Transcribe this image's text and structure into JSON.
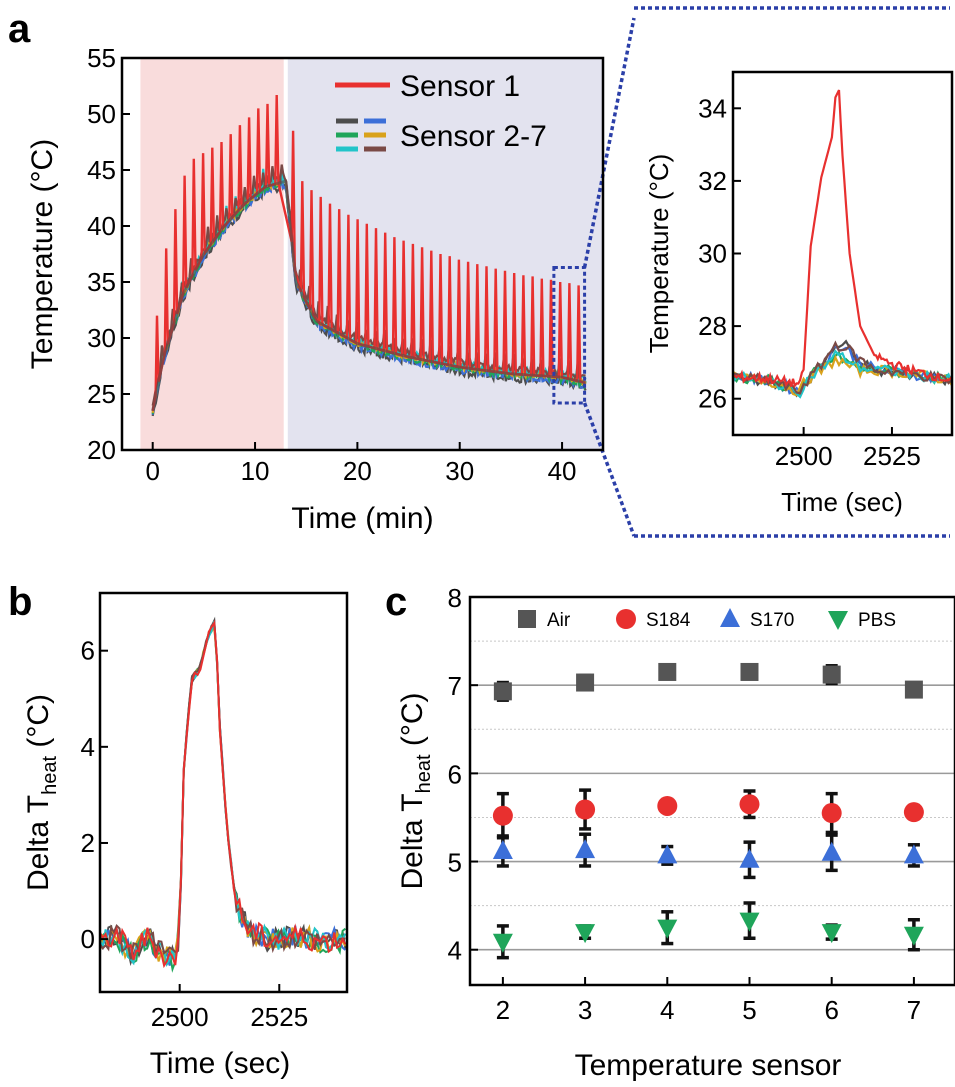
{
  "panels": {
    "a": "a",
    "b": "b",
    "c": "c"
  },
  "chart_data": [
    {
      "panel": "a",
      "type": "line",
      "xlabel": "Time (min)",
      "ylabel": "Temperature (°C)",
      "xlim": [
        -3,
        44
      ],
      "ylim": [
        20,
        55
      ],
      "xticks": [
        "0",
        "10",
        "20",
        "30",
        "40"
      ],
      "yticks": [
        "20",
        "25",
        "30",
        "35",
        "40",
        "45",
        "50",
        "55"
      ],
      "shaded_regions": [
        {
          "x": [
            -1.2,
            12.8
          ],
          "color": "#f9dcdc"
        },
        {
          "x": [
            13.2,
            44
          ],
          "color": "#e3e3ef"
        }
      ],
      "highlight_box": {
        "x": [
          39.2,
          42.2
        ],
        "y": [
          24.2,
          36.3
        ]
      },
      "legend": {
        "position": "top-right",
        "entries": [
          "Sensor 1",
          "Sensor 2-7"
        ]
      },
      "series": [
        {
          "name": "Sensor 1",
          "color": "#e8302f",
          "baseline": [
            [
              0,
              23.5
            ],
            [
              1,
              28
            ],
            [
              3,
              34
            ],
            [
              5,
              37.5
            ],
            [
              7,
              40
            ],
            [
              9,
              42
            ],
            [
              11,
              43.5
            ],
            [
              13,
              44
            ],
            [
              14,
              35
            ],
            [
              16,
              31.5
            ],
            [
              20,
              29.5
            ],
            [
              25,
              28.3
            ],
            [
              30,
              27.4
            ],
            [
              35,
              26.8
            ],
            [
              40,
              26.5
            ],
            [
              42.3,
              26
            ]
          ],
          "peaks": [
            [
              0.3,
              32
            ],
            [
              1.2,
              38
            ],
            [
              2.1,
              41.5
            ],
            [
              3.0,
              44.5
            ],
            [
              3.9,
              46
            ],
            [
              4.8,
              46.5
            ],
            [
              5.7,
              47
            ],
            [
              6.6,
              47.5
            ],
            [
              7.5,
              48.2
            ],
            [
              8.4,
              49
            ],
            [
              9.3,
              49.7
            ],
            [
              10.2,
              50.5
            ],
            [
              11.1,
              50.9
            ],
            [
              12.0,
              51.7
            ],
            [
              13.6,
              48.5
            ],
            [
              14.5,
              44
            ],
            [
              15.4,
              43.2
            ],
            [
              16.3,
              42.6
            ],
            [
              17.2,
              42
            ],
            [
              18.1,
              41.5
            ],
            [
              19,
              41
            ],
            [
              19.9,
              40.6
            ],
            [
              20.8,
              40.2
            ],
            [
              21.7,
              39.8
            ],
            [
              22.6,
              39.4
            ],
            [
              23.5,
              39
            ],
            [
              24.4,
              38.7
            ],
            [
              25.3,
              38.4
            ],
            [
              26.2,
              38.1
            ],
            [
              27.1,
              37.8
            ],
            [
              28,
              37.5
            ],
            [
              28.9,
              37.3
            ],
            [
              29.8,
              37
            ],
            [
              30.7,
              36.8
            ],
            [
              31.6,
              36.6
            ],
            [
              32.5,
              36.4
            ],
            [
              33.4,
              36.2
            ],
            [
              34.3,
              36
            ],
            [
              35.2,
              35.8
            ],
            [
              36.1,
              35.6
            ],
            [
              37,
              35.5
            ],
            [
              37.9,
              35.3
            ],
            [
              38.8,
              35.2
            ],
            [
              39.7,
              35
            ],
            [
              40.6,
              34.9
            ],
            [
              41.5,
              34.7
            ]
          ]
        },
        {
          "name": "Sensor 2-7",
          "colors": [
            "#4d4d4d",
            "#3c6fd8",
            "#1fa55a",
            "#d9a21b",
            "#22c4c9",
            "#7a4a46"
          ],
          "baseline": [
            [
              0,
              23.5
            ],
            [
              1,
              28
            ],
            [
              3,
              34
            ],
            [
              5,
              37.5
            ],
            [
              7,
              40
            ],
            [
              9,
              42
            ],
            [
              11,
              43.5
            ],
            [
              13,
              44
            ],
            [
              14,
              35
            ],
            [
              16,
              31.5
            ],
            [
              20,
              29.5
            ],
            [
              25,
              28.3
            ],
            [
              30,
              27.4
            ],
            [
              35,
              26.8
            ],
            [
              40,
              26.5
            ],
            [
              42.3,
              26
            ]
          ]
        }
      ]
    },
    {
      "panel": "a-inset",
      "type": "line",
      "xlabel": "Time (sec)",
      "ylabel": "Temperature (°C)",
      "xlim": [
        2480,
        2542
      ],
      "ylim": [
        25,
        35
      ],
      "xticks": [
        "2500",
        "2525"
      ],
      "yticks": [
        "26",
        "28",
        "30",
        "32",
        "34"
      ],
      "series": [
        {
          "name": "Sensor 1",
          "color": "#e8302f",
          "points": [
            [
              2480,
              26.6
            ],
            [
              2490,
              26.55
            ],
            [
              2499,
              26.4
            ],
            [
              2500,
              26.8
            ],
            [
              2502,
              30.2
            ],
            [
              2505,
              32.1
            ],
            [
              2508,
              33.2
            ],
            [
              2509,
              34.3
            ],
            [
              2510,
              34.5
            ],
            [
              2511,
              32.7
            ],
            [
              2513,
              30
            ],
            [
              2516,
              28
            ],
            [
              2520,
              27.2
            ],
            [
              2525,
              26.95
            ],
            [
              2530,
              26.8
            ],
            [
              2542,
              26.5
            ]
          ]
        },
        {
          "name": "Sensor 2-7",
          "colors": [
            "#4d4d4d",
            "#3c6fd8",
            "#1fa55a",
            "#d9a21b",
            "#22c4c9",
            "#7a4a46"
          ],
          "points": [
            [
              2480,
              26.6
            ],
            [
              2490,
              26.5
            ],
            [
              2499,
              26.2
            ],
            [
              2500,
              26.4
            ],
            [
              2505,
              26.9
            ],
            [
              2509,
              27.4
            ],
            [
              2512,
              27.3
            ],
            [
              2516,
              27
            ],
            [
              2520,
              26.8
            ],
            [
              2530,
              26.7
            ],
            [
              2542,
              26.5
            ]
          ],
          "peak_offsets": [
            0.15,
            0.05,
            -0.25,
            -0.35,
            -0.2,
            0.1
          ]
        }
      ]
    },
    {
      "panel": "b",
      "type": "line",
      "xlabel": "Time (sec)",
      "ylabel": "Delta T",
      "ylabel_subscript": "heat",
      "ylabel_unit": " (°C)",
      "xlim": [
        2480,
        2542
      ],
      "ylim": [
        -1.1,
        7.2
      ],
      "xticks": [
        "2500",
        "2525"
      ],
      "yticks": [
        "0",
        "2",
        "4",
        "6"
      ],
      "series": [
        {
          "name": "Sensor 2-7",
          "colors": [
            "#4d4d4d",
            "#3c6fd8",
            "#1fa55a",
            "#d9a21b",
            "#22c4c9",
            "#7a4a46",
            "#e8302f"
          ],
          "points": [
            [
              2480,
              -0.1
            ],
            [
              2484,
              0.1
            ],
            [
              2488,
              -0.3
            ],
            [
              2492,
              0.05
            ],
            [
              2496,
              -0.35
            ],
            [
              2499,
              -0.4
            ],
            [
              2500,
              0.2
            ],
            [
              2501,
              3.5
            ],
            [
              2503,
              5.4
            ],
            [
              2505,
              5.6
            ],
            [
              2507,
              6.3
            ],
            [
              2509,
              6.6
            ],
            [
              2510,
              4.5
            ],
            [
              2512,
              2.2
            ],
            [
              2514,
              0.8
            ],
            [
              2517,
              0.2
            ],
            [
              2522,
              0.0
            ],
            [
              2530,
              0.05
            ],
            [
              2536,
              -0.05
            ],
            [
              2542,
              0.0
            ]
          ]
        }
      ]
    },
    {
      "panel": "c",
      "type": "scatter",
      "xlabel": "Temperature sensor",
      "ylabel": "Delta T",
      "ylabel_subscript": "heat",
      "ylabel_unit": " (°C)",
      "xlim": [
        1.6,
        7.5
      ],
      "ylim": [
        3.6,
        8.0
      ],
      "xticks": [
        "2",
        "3",
        "4",
        "5",
        "6",
        "7"
      ],
      "yticks": [
        "4",
        "5",
        "6",
        "7",
        "8"
      ],
      "grid": true,
      "legend": {
        "position": "top",
        "entries": [
          "Air",
          "S184",
          "S170",
          "PBS"
        ]
      },
      "series": [
        {
          "name": "Air",
          "marker": "square",
          "color": "#555555",
          "x": [
            2,
            3,
            4,
            5,
            6,
            7
          ],
          "values": [
            6.93,
            7.03,
            7.15,
            7.15,
            7.12,
            6.95
          ],
          "err": [
            0.1,
            0.08,
            0.06,
            0.05,
            0.1,
            0.05
          ]
        },
        {
          "name": "S184",
          "marker": "circle",
          "color": "#e8302f",
          "x": [
            2,
            3,
            4,
            5,
            6,
            7
          ],
          "values": [
            5.52,
            5.59,
            5.63,
            5.65,
            5.55,
            5.56
          ],
          "err": [
            0.25,
            0.22,
            0.05,
            0.15,
            0.22,
            0.07
          ]
        },
        {
          "name": "S170",
          "marker": "triangle-up",
          "color": "#3c6fd8",
          "x": [
            2,
            3,
            4,
            5,
            6,
            7
          ],
          "values": [
            5.12,
            5.13,
            5.07,
            5.02,
            5.1,
            5.07
          ],
          "err": [
            0.17,
            0.18,
            0.1,
            0.2,
            0.2,
            0.12
          ]
        },
        {
          "name": "PBS",
          "marker": "triangle-down",
          "color": "#1fa55a",
          "x": [
            2,
            3,
            4,
            5,
            6,
            7
          ],
          "values": [
            4.09,
            4.2,
            4.25,
            4.33,
            4.2,
            4.17
          ],
          "err": [
            0.18,
            0.07,
            0.18,
            0.2,
            0.08,
            0.17
          ]
        }
      ]
    }
  ]
}
